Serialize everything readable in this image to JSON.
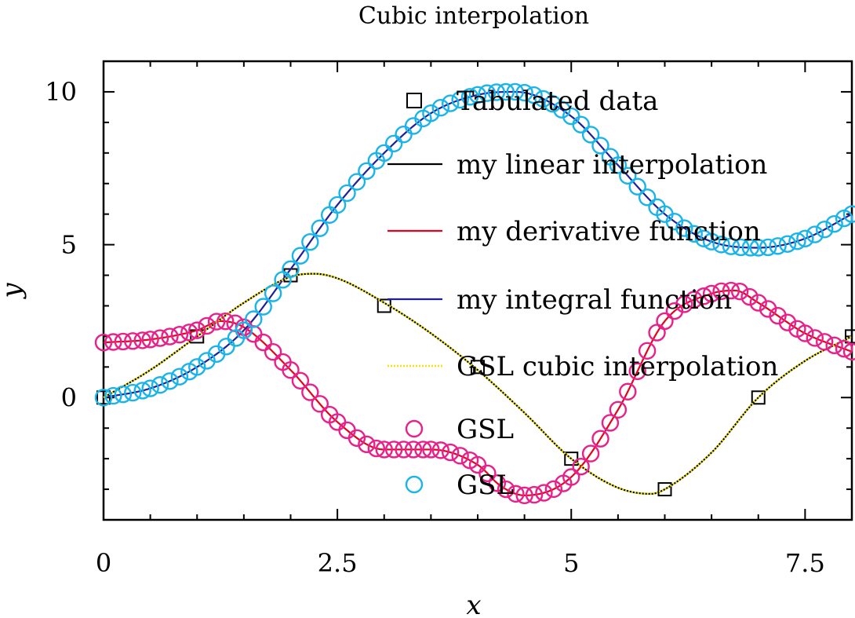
{
  "chart_data": {
    "type": "line",
    "title": "Cubic interpolation",
    "xlabel": "x",
    "ylabel": "y",
    "xlim": [
      0,
      8
    ],
    "ylim": [
      -4,
      11
    ],
    "xticks": [
      0,
      2.5,
      5,
      7.5
    ],
    "xtick_labels": [
      "0",
      "2.5",
      "5",
      "7.5"
    ],
    "yticks": [
      0,
      5,
      10
    ],
    "ytick_labels": [
      "0",
      "5",
      "10"
    ],
    "legend_position": "top-right",
    "series": [
      {
        "name": "Tabulated data",
        "kind": "markers",
        "marker": "square",
        "color": "#000000",
        "x": [
          0,
          1,
          2,
          3,
          4,
          5,
          6,
          7,
          8
        ],
        "y": [
          0,
          2,
          4,
          3,
          1,
          -2,
          -3,
          0,
          2
        ]
      },
      {
        "name": "my linear interpolation",
        "kind": "line",
        "color": "#000000",
        "x": [
          0,
          1,
          2,
          3,
          4,
          5,
          6,
          7,
          8
        ],
        "y": [
          0,
          2,
          4,
          3,
          1,
          -2,
          -3,
          0,
          2
        ]
      },
      {
        "name": "my derivative function",
        "kind": "line",
        "color": "#e8001c",
        "x": [
          0,
          0.5,
          1,
          1.25,
          1.5,
          2,
          2.5,
          3,
          3.5,
          4,
          4.25,
          4.5,
          5,
          5.5,
          6,
          6.5,
          6.75,
          7,
          7.5,
          8
        ],
        "y": [
          1.8,
          1.9,
          2.2,
          2.5,
          2.3,
          0.9,
          -0.8,
          -1.7,
          -1.7,
          -2.2,
          -2.9,
          -3.2,
          -2.6,
          -0.4,
          2.5,
          3.4,
          3.5,
          3.1,
          2.1,
          1.5
        ]
      },
      {
        "name": "my integral function",
        "kind": "line",
        "color": "#1f1f9a",
        "x": [
          0,
          0.5,
          1,
          1.5,
          2,
          2.5,
          3,
          3.5,
          4,
          4.4,
          5,
          5.5,
          6,
          6.5,
          7,
          7.5,
          8
        ],
        "y": [
          0,
          0.3,
          1.0,
          2.2,
          4.2,
          6.3,
          8.0,
          9.3,
          9.9,
          10.0,
          9.2,
          7.6,
          6.0,
          5.1,
          4.9,
          5.2,
          6.0
        ]
      },
      {
        "name": "GSL cubic interpolation",
        "kind": "line",
        "style": "dotted",
        "color": "#f4e200",
        "x": [
          0,
          0.5,
          1,
          1.5,
          2,
          2.25,
          2.5,
          3,
          3.5,
          4,
          4.5,
          5,
          5.5,
          5.85,
          6,
          6.5,
          7,
          7.5,
          8
        ],
        "y": [
          0,
          0.9,
          2.0,
          3.1,
          3.95,
          4.05,
          3.9,
          3.1,
          2.1,
          0.9,
          -0.5,
          -2.0,
          -2.95,
          -3.15,
          -3.0,
          -1.8,
          0,
          1.2,
          2.0
        ]
      },
      {
        "name": "GSL",
        "kind": "markers",
        "marker": "circle",
        "color": "#e8208a",
        "x": [
          0,
          0.5,
          1,
          1.25,
          1.5,
          2,
          2.5,
          3,
          3.5,
          4,
          4.25,
          4.5,
          5,
          5.5,
          6,
          6.5,
          6.75,
          7,
          7.5,
          8
        ],
        "y": [
          1.8,
          1.9,
          2.2,
          2.5,
          2.3,
          0.9,
          -0.8,
          -1.7,
          -1.7,
          -2.2,
          -2.9,
          -3.2,
          -2.6,
          -0.4,
          2.5,
          3.4,
          3.5,
          3.1,
          2.1,
          1.5
        ]
      },
      {
        "name": "GSL",
        "kind": "markers",
        "marker": "circle",
        "color": "#1ab4e8",
        "x": [
          0,
          0.5,
          1,
          1.5,
          2,
          2.5,
          3,
          3.5,
          4,
          4.4,
          5,
          5.5,
          6,
          6.5,
          7,
          7.5,
          8
        ],
        "y": [
          0,
          0.3,
          1.0,
          2.2,
          4.2,
          6.3,
          8.0,
          9.3,
          9.9,
          10.0,
          9.2,
          7.6,
          6.0,
          5.1,
          4.9,
          5.2,
          6.0
        ]
      }
    ]
  }
}
